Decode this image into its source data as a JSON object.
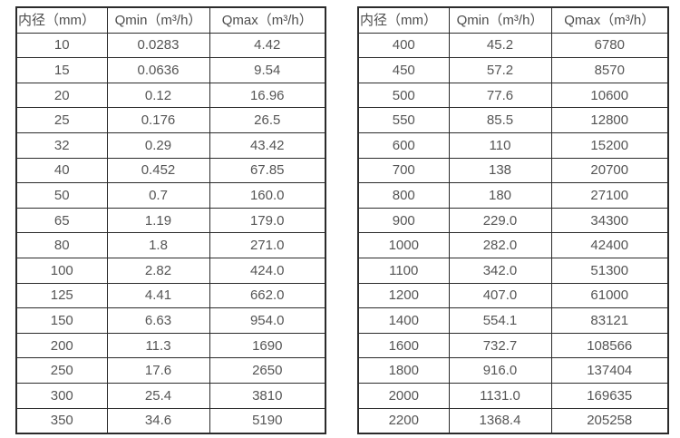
{
  "colors": {
    "border": "#2b2b2b",
    "text": "#555555",
    "background": "#ffffff"
  },
  "tables": [
    {
      "name": "flow-range-table-small-diameters",
      "headers": [
        "内径（mm）",
        "Qmin（m³/h）",
        "Qmax（m³/h）"
      ],
      "rows": [
        [
          "10",
          "0.0283",
          "4.42"
        ],
        [
          "15",
          "0.0636",
          "9.54"
        ],
        [
          "20",
          "0.12",
          "16.96"
        ],
        [
          "25",
          "0.176",
          "26.5"
        ],
        [
          "32",
          "0.29",
          "43.42"
        ],
        [
          "40",
          "0.452",
          "67.85"
        ],
        [
          "50",
          "0.7",
          "160.0"
        ],
        [
          "65",
          "1.19",
          "179.0"
        ],
        [
          "80",
          "1.8",
          "271.0"
        ],
        [
          "100",
          "2.82",
          "424.0"
        ],
        [
          "125",
          "4.41",
          "662.0"
        ],
        [
          "150",
          "6.63",
          "954.0"
        ],
        [
          "200",
          "11.3",
          "1690"
        ],
        [
          "250",
          "17.6",
          "2650"
        ],
        [
          "300",
          "25.4",
          "3810"
        ],
        [
          "350",
          "34.6",
          "5190"
        ]
      ]
    },
    {
      "name": "flow-range-table-large-diameters",
      "headers": [
        "内径（mm）",
        "Qmin（m³/h）",
        "Qmax（m³/h）"
      ],
      "rows": [
        [
          "400",
          "45.2",
          "6780"
        ],
        [
          "450",
          "57.2",
          "8570"
        ],
        [
          "500",
          "77.6",
          "10600"
        ],
        [
          "550",
          "85.5",
          "12800"
        ],
        [
          "600",
          "110",
          "15200"
        ],
        [
          "700",
          "138",
          "20700"
        ],
        [
          "800",
          "180",
          "27100"
        ],
        [
          "900",
          "229.0",
          "34300"
        ],
        [
          "1000",
          "282.0",
          "42400"
        ],
        [
          "1100",
          "342.0",
          "51300"
        ],
        [
          "1200",
          "407.0",
          "61000"
        ],
        [
          "1400",
          "554.1",
          "83121"
        ],
        [
          "1600",
          "732.7",
          "108566"
        ],
        [
          "1800",
          "916.0",
          "137404"
        ],
        [
          "2000",
          "1131.0",
          "169635"
        ],
        [
          "2200",
          "1368.4",
          "205258"
        ]
      ]
    }
  ]
}
